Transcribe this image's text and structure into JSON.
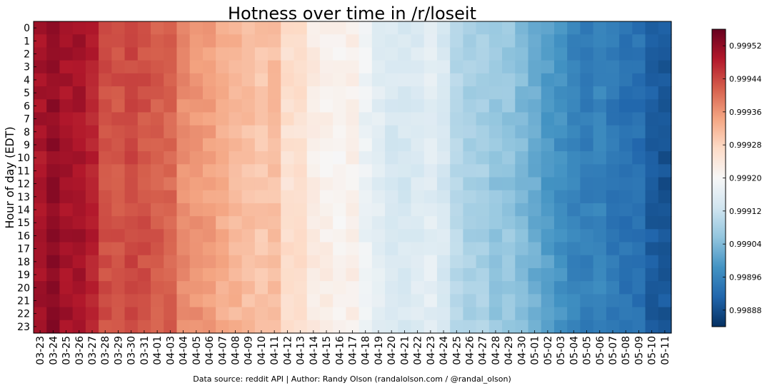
{
  "chart_data": {
    "type": "heatmap",
    "title": "Hotness over time in /r/loseit",
    "xlabel": "",
    "ylabel": "Hour of day (EDT)",
    "footer": "Data source: reddit API | Author: Randy Olson (randalolson.com / @randal_olson)",
    "colormap": "RdBu_r",
    "colors": {
      "low": "#053061",
      "mid": "#f7f7f7",
      "high": "#67001f"
    },
    "x": [
      "03-23",
      "03-24",
      "03-25",
      "03-26",
      "03-27",
      "03-28",
      "03-29",
      "03-30",
      "03-31",
      "04-01",
      "04-03",
      "04-04",
      "04-05",
      "04-06",
      "04-07",
      "04-08",
      "04-09",
      "04-10",
      "04-11",
      "04-12",
      "04-13",
      "04-14",
      "04-15",
      "04-16",
      "04-17",
      "04-18",
      "04-19",
      "04-20",
      "04-21",
      "04-22",
      "04-23",
      "04-24",
      "04-25",
      "04-26",
      "04-27",
      "04-28",
      "04-29",
      "04-30",
      "05-01",
      "05-02",
      "05-03",
      "05-04",
      "05-05",
      "05-06",
      "05-07",
      "05-08",
      "05-09",
      "05-10",
      "05-11"
    ],
    "y": [
      "0",
      "1",
      "2",
      "3",
      "4",
      "5",
      "6",
      "7",
      "8",
      "9",
      "10",
      "11",
      "12",
      "13",
      "14",
      "15",
      "16",
      "17",
      "18",
      "19",
      "20",
      "21",
      "22",
      "23"
    ],
    "vmin": 0.99884,
    "vmax": 0.99956,
    "colorbar_ticks": [
      "0.99888",
      "0.99896",
      "0.99904",
      "0.99912",
      "0.99920",
      "0.99928",
      "0.99936",
      "0.99944",
      "0.99952"
    ],
    "column_means": [
      0.9995,
      0.99952,
      0.9995,
      0.9995,
      0.99948,
      0.99943,
      0.99943,
      0.99944,
      0.99943,
      0.99942,
      0.99941,
      0.99937,
      0.99936,
      0.99935,
      0.99933,
      0.99932,
      0.99931,
      0.9993,
      0.99931,
      0.99926,
      0.99926,
      0.99923,
      0.99922,
      0.99921,
      0.99922,
      0.99918,
      0.99916,
      0.99914,
      0.99914,
      0.99915,
      0.99916,
      0.99914,
      0.9991,
      0.99908,
      0.99908,
      0.99906,
      0.99906,
      0.99904,
      0.99902,
      0.999,
      0.99898,
      0.99896,
      0.99895,
      0.99896,
      0.99894,
      0.99893,
      0.99893,
      0.9989,
      0.99889
    ],
    "row_offsets": [
      2e-06,
      2e-06,
      2e-06,
      2e-06,
      1e-06,
      0.0,
      -1e-06,
      -2e-06,
      -3e-06,
      -3e-06,
      -4e-06,
      -3e-06,
      -3e-06,
      -2e-06,
      -1e-06,
      0.0,
      1e-06,
      2e-06,
      2e-06,
      3e-06,
      3e-06,
      3e-06,
      3e-06,
      3e-06
    ]
  }
}
